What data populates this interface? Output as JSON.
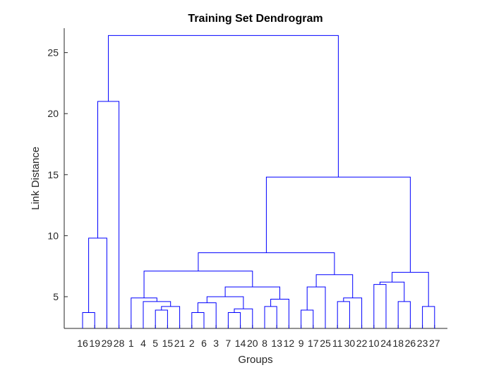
{
  "chart_data": {
    "type": "dendrogram",
    "title": "Training Set Dendrogram",
    "xlabel": "Groups",
    "ylabel": "Link Distance",
    "ylim": [
      2.4,
      27.0
    ],
    "yticks": [
      5,
      10,
      15,
      20,
      25
    ],
    "grid": false,
    "leaf_order": [
      "16",
      "19",
      "29",
      "28",
      "1",
      "4",
      "5",
      "15",
      "21",
      "2",
      "6",
      "3",
      "7",
      "14",
      "20",
      "8",
      "13",
      "12",
      "9",
      "17",
      "25",
      "11",
      "30",
      "22",
      "10",
      "24",
      "18",
      "26",
      "23",
      "27"
    ],
    "merges": [
      {
        "left": "16",
        "right": "19",
        "height": 3.7
      },
      {
        "left": "16-19",
        "right": "29",
        "height": 9.8
      },
      {
        "left": "16-19-29",
        "right": "28",
        "height": 21.0
      },
      {
        "left": "5",
        "right": "15",
        "height": 3.9
      },
      {
        "left": "5-15",
        "right": "21",
        "height": 4.2
      },
      {
        "left": "4",
        "right": "5-15-21",
        "height": 4.6
      },
      {
        "left": "1",
        "right": "4-5-15-21",
        "height": 4.9
      },
      {
        "left": "2",
        "right": "6",
        "height": 3.7
      },
      {
        "left": "2-6",
        "right": "3",
        "height": 4.5
      },
      {
        "left": "7",
        "right": "14",
        "height": 3.7
      },
      {
        "left": "7-14",
        "right": "20",
        "height": 4.0
      },
      {
        "left": "2-6-3",
        "right": "7-14-20",
        "height": 5.0
      },
      {
        "left": "8",
        "right": "13",
        "height": 4.2
      },
      {
        "left": "8-13",
        "right": "12",
        "height": 4.8
      },
      {
        "left": "2..20",
        "right": "8-13-12",
        "height": 5.8
      },
      {
        "left": "1..21",
        "right": "2..12",
        "height": 7.1
      },
      {
        "left": "9",
        "right": "17",
        "height": 3.9
      },
      {
        "left": "9-17",
        "right": "25",
        "height": 5.8
      },
      {
        "left": "11",
        "right": "30",
        "height": 4.6
      },
      {
        "left": "11-30",
        "right": "22",
        "height": 4.9
      },
      {
        "left": "9-17-25",
        "right": "11-30-22",
        "height": 6.8
      },
      {
        "left": "1..12",
        "right": "9..22",
        "height": 8.6
      },
      {
        "left": "10",
        "right": "24",
        "height": 6.0
      },
      {
        "left": "18",
        "right": "26",
        "height": 4.6
      },
      {
        "left": "10-24",
        "right": "18-26",
        "height": 6.2
      },
      {
        "left": "23",
        "right": "27",
        "height": 4.2
      },
      {
        "left": "10..26",
        "right": "23-27",
        "height": 7.0
      },
      {
        "left": "1..22",
        "right": "10..27",
        "height": 14.8
      },
      {
        "left": "16..28",
        "right": "1..27",
        "height": 26.4
      }
    ]
  }
}
